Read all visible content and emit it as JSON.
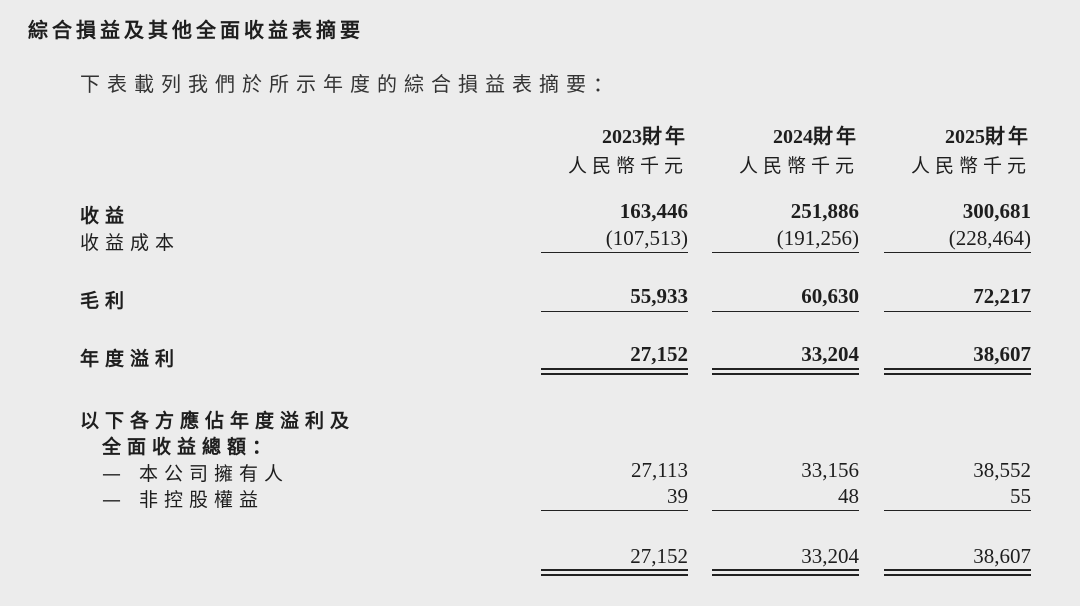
{
  "title": "綜合損益及其他全面收益表摘要",
  "subtitle": "下表載列我們於所示年度的綜合損益表摘要：",
  "columns": [
    {
      "year": "2023",
      "suffix": "財年",
      "unit": "人民幣千元"
    },
    {
      "year": "2024",
      "suffix": "財年",
      "unit": "人民幣千元"
    },
    {
      "year": "2025",
      "suffix": "財年",
      "unit": "人民幣千元"
    }
  ],
  "rows": {
    "revenue": {
      "label": "收益",
      "values": [
        "163,446",
        "251,886",
        "300,681"
      ]
    },
    "cost": {
      "label": "收益成本",
      "values": [
        "(107,513)",
        "(191,256)",
        "(228,464)"
      ]
    },
    "gross": {
      "label": "毛利",
      "values": [
        "55,933",
        "60,630",
        "72,217"
      ]
    },
    "profit": {
      "label": "年度溢利",
      "values": [
        "27,152",
        "33,204",
        "38,607"
      ]
    },
    "attr_heading_1": "以下各方應佔年度溢利及",
    "attr_heading_2": "全面收益總額：",
    "owners": {
      "label": "— 本公司擁有人",
      "values": [
        "27,113",
        "33,156",
        "38,552"
      ]
    },
    "nci": {
      "label": "— 非控股權益",
      "values": [
        "39",
        "48",
        "55"
      ]
    },
    "total": {
      "values": [
        "27,152",
        "33,204",
        "38,607"
      ]
    }
  }
}
